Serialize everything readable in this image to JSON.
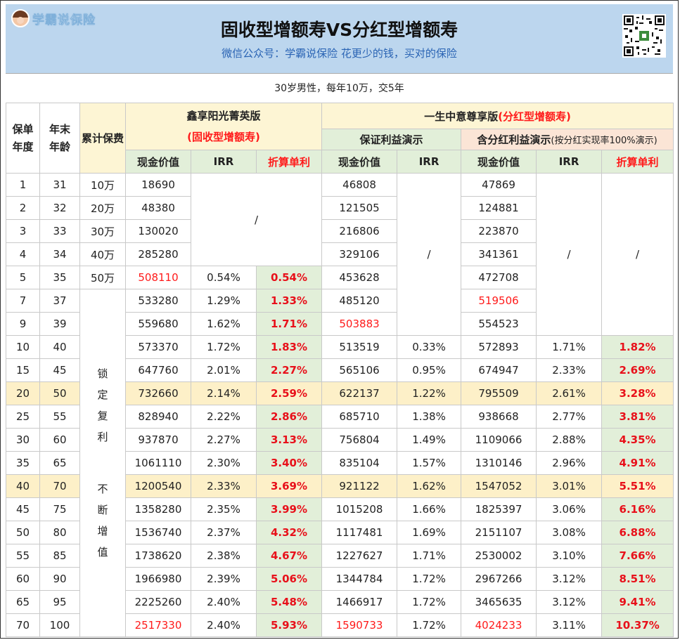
{
  "header": {
    "logo_text": "学霸说保险",
    "title": "固收型增额寿VS分红型增额寿",
    "subtitle": "微信公众号：学霸说保险    花更少的钱，买对的保险",
    "qr_icon": "qr-code-icon"
  },
  "scenario": "30岁男性，每年10万，交5年",
  "columns": {
    "policy_year": "保单年度",
    "age": "年末年龄",
    "cumulative_premium": "累计保费",
    "product_a_name": "鑫享阳光菁英版",
    "product_a_type": "(固收型增额寿)",
    "product_b_name": "一生中意尊享版",
    "product_b_type": "(分红型增额寿)",
    "guaranteed_demo": "保证利益演示",
    "dividend_demo": "含分红利益演示",
    "dividend_note": "(按分红实现率100%演示)",
    "cash_value": "现金价值",
    "irr": "IRR",
    "simple_rate": "折算单利"
  },
  "slash": "/",
  "lock_text": [
    "锁",
    "定",
    "复",
    "利",
    "",
    "不",
    "断",
    "增",
    "值"
  ],
  "rows": [
    {
      "year": "1",
      "age": "31",
      "premium": "10万",
      "a_cv": "18690",
      "b_cv": "46808",
      "c_cv": "47869"
    },
    {
      "year": "2",
      "age": "32",
      "premium": "20万",
      "a_cv": "48380",
      "b_cv": "121505",
      "c_cv": "124881"
    },
    {
      "year": "3",
      "age": "33",
      "premium": "30万",
      "a_cv": "130020",
      "b_cv": "216806",
      "c_cv": "223870"
    },
    {
      "year": "4",
      "age": "34",
      "premium": "40万",
      "a_cv": "285280",
      "b_cv": "329106",
      "c_cv": "341361"
    },
    {
      "year": "5",
      "age": "35",
      "premium": "50万",
      "a_cv": "508110",
      "a_irr": "0.54%",
      "a_simple": "0.54%",
      "b_cv": "453628",
      "c_cv": "472708"
    },
    {
      "year": "7",
      "age": "37",
      "a_cv": "533280",
      "a_irr": "1.29%",
      "a_simple": "1.33%",
      "b_cv": "485120",
      "c_cv": "519506"
    },
    {
      "year": "9",
      "age": "39",
      "a_cv": "559680",
      "a_irr": "1.62%",
      "a_simple": "1.71%",
      "b_cv": "503883",
      "c_cv": "554523"
    },
    {
      "year": "10",
      "age": "40",
      "a_cv": "573370",
      "a_irr": "1.72%",
      "a_simple": "1.83%",
      "b_cv": "513519",
      "b_irr": "0.33%",
      "c_cv": "572893",
      "c_irr": "1.71%",
      "c_simple": "1.82%"
    },
    {
      "year": "15",
      "age": "45",
      "a_cv": "647760",
      "a_irr": "2.01%",
      "a_simple": "2.27%",
      "b_cv": "565106",
      "b_irr": "0.95%",
      "c_cv": "674947",
      "c_irr": "2.33%",
      "c_simple": "2.69%"
    },
    {
      "year": "20",
      "age": "50",
      "a_cv": "732660",
      "a_irr": "2.14%",
      "a_simple": "2.59%",
      "b_cv": "622137",
      "b_irr": "1.22%",
      "c_cv": "795509",
      "c_irr": "2.61%",
      "c_simple": "3.28%"
    },
    {
      "year": "25",
      "age": "55",
      "a_cv": "828940",
      "a_irr": "2.22%",
      "a_simple": "2.86%",
      "b_cv": "685710",
      "b_irr": "1.38%",
      "c_cv": "938668",
      "c_irr": "2.77%",
      "c_simple": "3.81%"
    },
    {
      "year": "30",
      "age": "60",
      "a_cv": "937870",
      "a_irr": "2.27%",
      "a_simple": "3.13%",
      "b_cv": "756804",
      "b_irr": "1.49%",
      "c_cv": "1109066",
      "c_irr": "2.88%",
      "c_simple": "4.35%"
    },
    {
      "year": "35",
      "age": "65",
      "a_cv": "1061110",
      "a_irr": "2.30%",
      "a_simple": "3.40%",
      "b_cv": "835104",
      "b_irr": "1.57%",
      "c_cv": "1310146",
      "c_irr": "2.96%",
      "c_simple": "4.91%"
    },
    {
      "year": "40",
      "age": "70",
      "a_cv": "1200540",
      "a_irr": "2.33%",
      "a_simple": "3.69%",
      "b_cv": "921122",
      "b_irr": "1.62%",
      "c_cv": "1547052",
      "c_irr": "3.01%",
      "c_simple": "5.51%"
    },
    {
      "year": "45",
      "age": "75",
      "a_cv": "1358280",
      "a_irr": "2.35%",
      "a_simple": "3.99%",
      "b_cv": "1015208",
      "b_irr": "1.66%",
      "c_cv": "1825397",
      "c_irr": "3.06%",
      "c_simple": "6.16%"
    },
    {
      "year": "50",
      "age": "80",
      "a_cv": "1536740",
      "a_irr": "2.37%",
      "a_simple": "4.32%",
      "b_cv": "1117481",
      "b_irr": "1.69%",
      "c_cv": "2151107",
      "c_irr": "3.08%",
      "c_simple": "6.88%"
    },
    {
      "year": "55",
      "age": "85",
      "a_cv": "1738620",
      "a_irr": "2.38%",
      "a_simple": "4.67%",
      "b_cv": "1227627",
      "b_irr": "1.71%",
      "c_cv": "2530002",
      "c_irr": "3.10%",
      "c_simple": "7.66%"
    },
    {
      "year": "60",
      "age": "90",
      "a_cv": "1966980",
      "a_irr": "2.39%",
      "a_simple": "5.06%",
      "b_cv": "1344784",
      "b_irr": "1.72%",
      "c_cv": "2967266",
      "c_irr": "3.12%",
      "c_simple": "8.51%"
    },
    {
      "year": "65",
      "age": "95",
      "a_cv": "2225260",
      "a_irr": "2.40%",
      "a_simple": "5.48%",
      "b_cv": "1466917",
      "b_irr": "1.72%",
      "c_cv": "3465635",
      "c_irr": "3.12%",
      "c_simple": "9.41%"
    },
    {
      "year": "70",
      "age": "100",
      "a_cv": "2517330",
      "a_irr": "2.40%",
      "a_simple": "5.93%",
      "b_cv": "1590733",
      "b_irr": "1.72%",
      "c_cv": "4024233",
      "c_irr": "3.11%",
      "c_simple": "10.37%"
    }
  ],
  "colors": {
    "header_bg": "#bcd6ee",
    "subtitle_blue": "#2a64b4",
    "highlight_red": "#ff1a1a",
    "cream": "#fdf5d4",
    "green": "#e2efd9",
    "pink": "#fbe5d6",
    "row_highlight": "#fdf0c8"
  }
}
